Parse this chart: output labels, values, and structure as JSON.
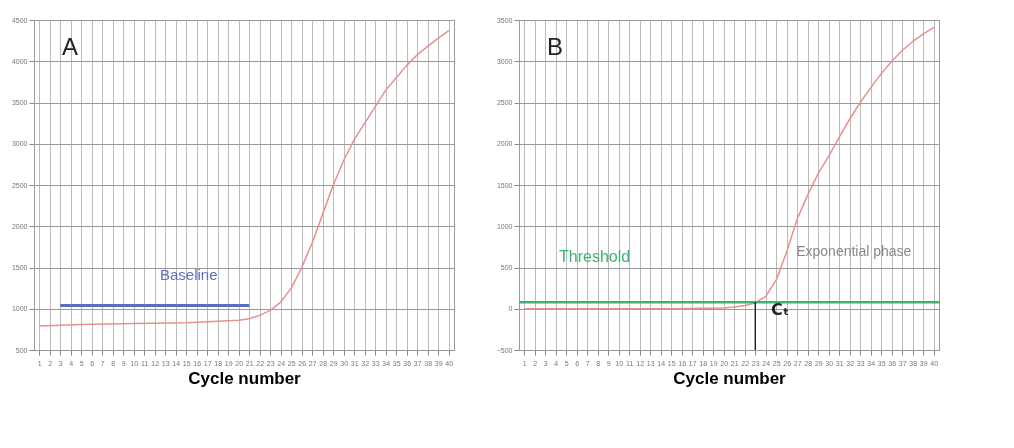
{
  "chart_data": [
    {
      "type": "line",
      "title": "A",
      "xlabel": "Cycle number",
      "x": [
        1,
        5,
        10,
        15,
        20,
        21,
        22,
        23,
        24,
        25,
        26,
        27,
        28,
        29,
        30,
        31,
        32,
        33,
        34,
        35,
        36,
        37,
        38,
        39,
        40
      ],
      "series": [
        {
          "color": "#5b6fc0",
          "x": [
            3,
            21
          ],
          "values": [
            1040,
            1040
          ]
        },
        {
          "color": "#e8908c",
          "values": [
            790,
            810,
            820,
            830,
            860,
            880,
            920,
            980,
            1080,
            1250,
            1500,
            1800,
            2150,
            2500,
            2800,
            3050,
            3250,
            3450,
            3650,
            3800,
            3950,
            4080,
            4180,
            4280,
            4370
          ]
        }
      ],
      "xlim": [
        0.5,
        40.5
      ],
      "xticks": [
        1,
        2,
        3,
        4,
        5,
        6,
        7,
        8,
        9,
        10,
        11,
        12,
        13,
        14,
        15,
        16,
        17,
        18,
        19,
        20,
        21,
        22,
        23,
        24,
        25,
        26,
        27,
        28,
        29,
        30,
        31,
        32,
        33,
        34,
        35,
        36,
        37,
        38,
        39,
        40
      ],
      "ylim": [
        500,
        4500
      ],
      "yticks": [
        500,
        1000,
        1500,
        2000,
        2500,
        3000,
        3500,
        4000,
        4500
      ],
      "annotations": [
        "Baseline"
      ],
      "grid": true,
      "marker": "none",
      "line_style": "solid"
    },
    {
      "type": "line",
      "title": "B",
      "xlabel": "Cycle number",
      "x": [
        1,
        5,
        10,
        15,
        20,
        21,
        22,
        23,
        24,
        25,
        26,
        27,
        28,
        29,
        30,
        31,
        32,
        33,
        34,
        35,
        36,
        37,
        38,
        39,
        40
      ],
      "series": [
        {
          "color": "#e8908c",
          "values": [
            0,
            0,
            0,
            0,
            10,
            20,
            40,
            70,
            150,
            350,
            690,
            1090,
            1380,
            1640,
            1850,
            2080,
            2300,
            2500,
            2680,
            2850,
            3000,
            3130,
            3240,
            3330,
            3410
          ]
        }
      ],
      "xlim": [
        0.5,
        40.5
      ],
      "xticks": [
        1,
        2,
        3,
        4,
        5,
        6,
        7,
        8,
        9,
        10,
        11,
        12,
        13,
        14,
        15,
        16,
        17,
        18,
        19,
        20,
        21,
        22,
        23,
        24,
        25,
        26,
        27,
        28,
        29,
        30,
        31,
        32,
        33,
        34,
        35,
        36,
        37,
        38,
        39,
        40
      ],
      "ylim": [
        -500,
        3500
      ],
      "yticks": [
        -500,
        0,
        500,
        1000,
        1500,
        2000,
        2500,
        3000,
        3500
      ],
      "ref_lines": [
        {
          "axis": "y",
          "value": 80,
          "label": "Threshold",
          "color": "#3cb371"
        },
        {
          "axis": "x",
          "value": 23,
          "color": "#000000"
        }
      ],
      "annotations": [
        "Exponential phase",
        "Cₜ"
      ],
      "grid": true,
      "marker": "none",
      "line_style": "solid"
    }
  ]
}
